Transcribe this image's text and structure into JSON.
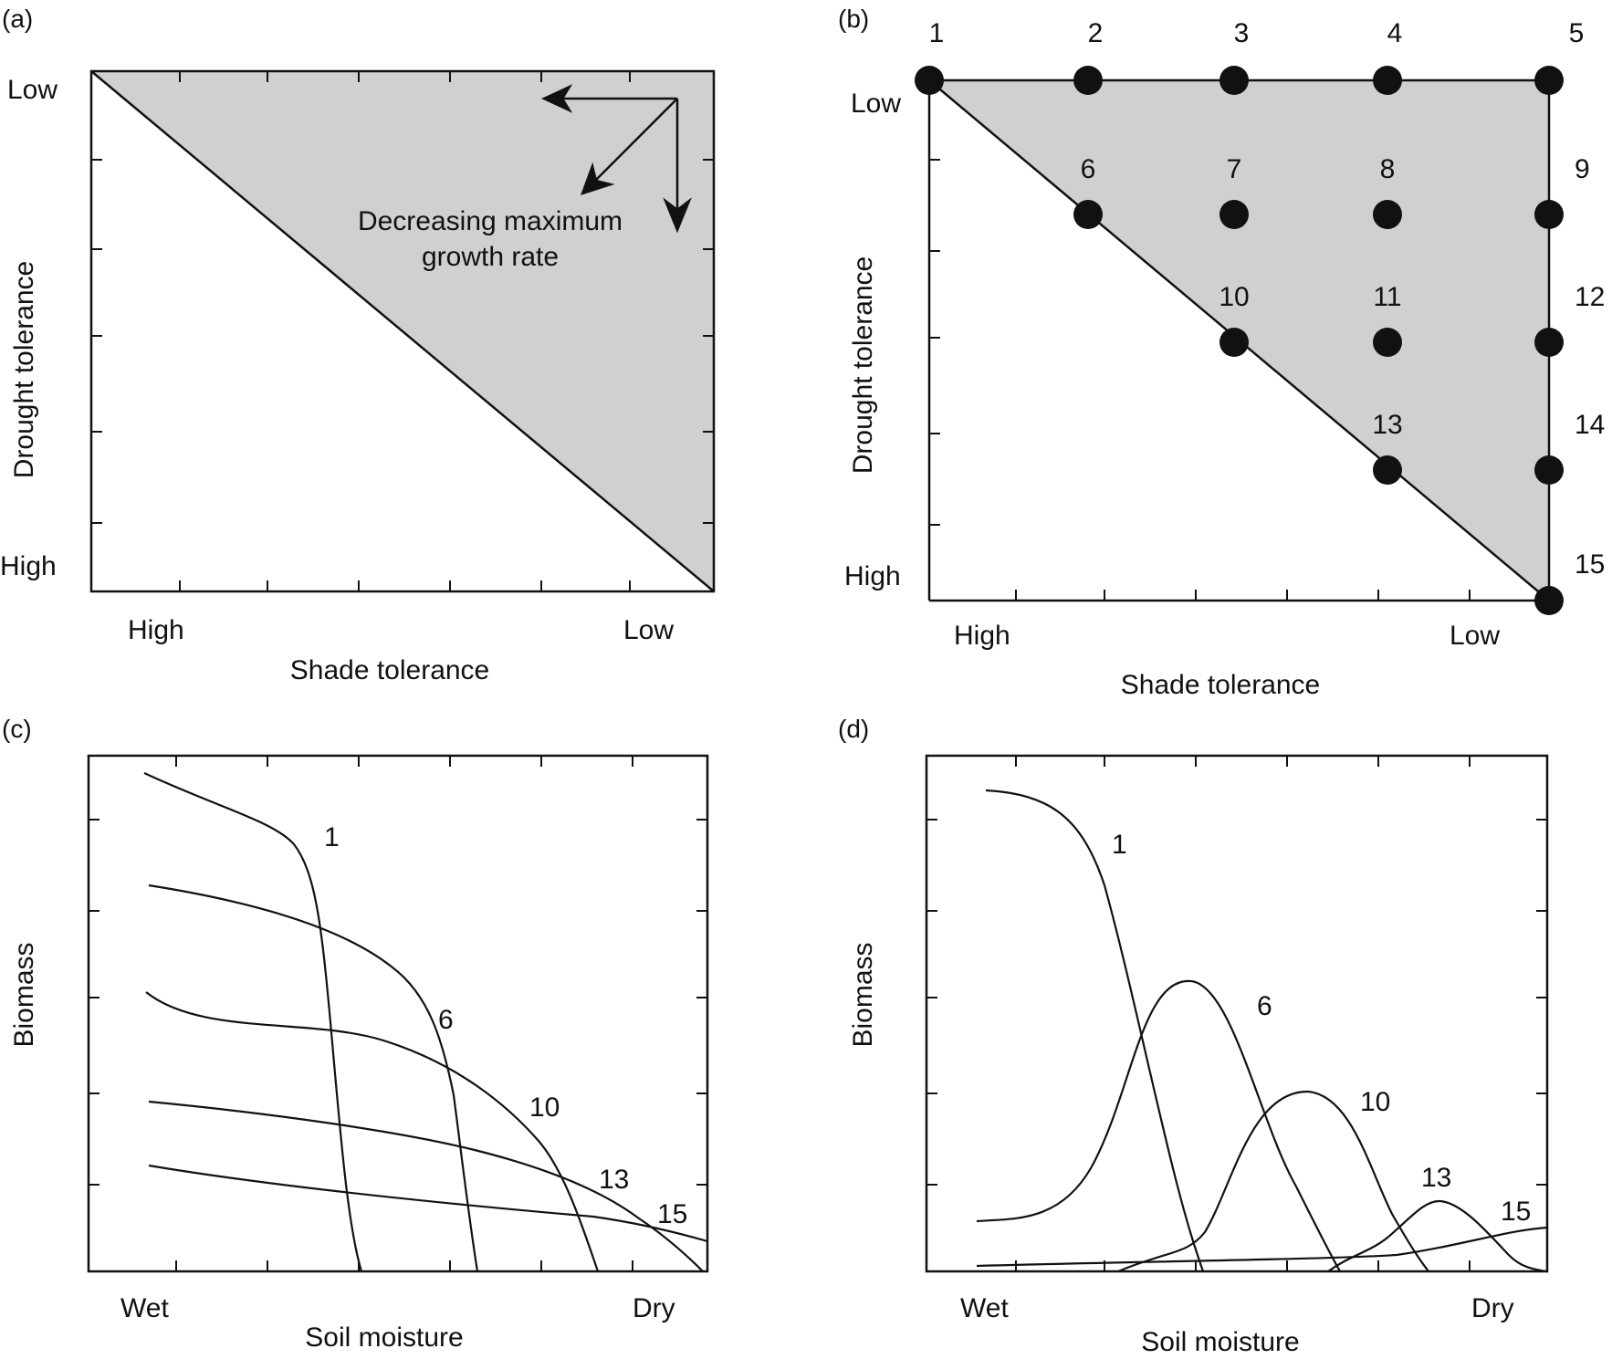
{
  "panels": {
    "a": {
      "label": "(a)",
      "ylabel": "Drought tolerance",
      "y_top": "Low",
      "y_bottom": "High",
      "xlabel": "Shade tolerance",
      "x_left": "High",
      "x_right": "Low",
      "annotation_line1": "Decreasing maximum",
      "annotation_line2": "growth rate"
    },
    "b": {
      "label": "(b)",
      "ylabel": "Drought tolerance",
      "y_top": "Low",
      "y_bottom": "High",
      "xlabel": "Shade tolerance",
      "x_left": "High",
      "x_right": "Low",
      "points": [
        {
          "id": "1",
          "label": "1",
          "col": 0,
          "row": 0
        },
        {
          "id": "2",
          "label": "2",
          "col": 1,
          "row": 0
        },
        {
          "id": "3",
          "label": "3",
          "col": 2,
          "row": 0
        },
        {
          "id": "4",
          "label": "4",
          "col": 3,
          "row": 0
        },
        {
          "id": "5",
          "label": "5",
          "col": 4,
          "row": 0
        },
        {
          "id": "6",
          "label": "6",
          "col": 1,
          "row": 1
        },
        {
          "id": "7",
          "label": "7",
          "col": 2,
          "row": 1
        },
        {
          "id": "8",
          "label": "8",
          "col": 3,
          "row": 1
        },
        {
          "id": "9",
          "label": "9",
          "col": 4,
          "row": 1
        },
        {
          "id": "10",
          "label": "10",
          "col": 2,
          "row": 2
        },
        {
          "id": "11",
          "label": "11",
          "col": 3,
          "row": 2
        },
        {
          "id": "12",
          "label": "12",
          "col": 4,
          "row": 2
        },
        {
          "id": "13",
          "label": "13",
          "col": 3,
          "row": 3
        },
        {
          "id": "14",
          "label": "14",
          "col": 4,
          "row": 3
        },
        {
          "id": "15",
          "label": "15",
          "col": 4,
          "row": 4
        }
      ]
    },
    "c": {
      "label": "(c)",
      "ylabel": "Biomass",
      "xlabel": "Soil moisture",
      "x_left": "Wet",
      "x_right": "Dry",
      "curve_labels": [
        "1",
        "6",
        "10",
        "13",
        "15"
      ]
    },
    "d": {
      "label": "(d)",
      "ylabel": "Biomass",
      "xlabel": "Soil moisture",
      "x_left": "Wet",
      "x_right": "Dry",
      "curve_labels": [
        "1",
        "6",
        "10",
        "13",
        "15"
      ]
    }
  },
  "colors": {
    "shade": "#d0d0d0",
    "ink": "#111111"
  }
}
